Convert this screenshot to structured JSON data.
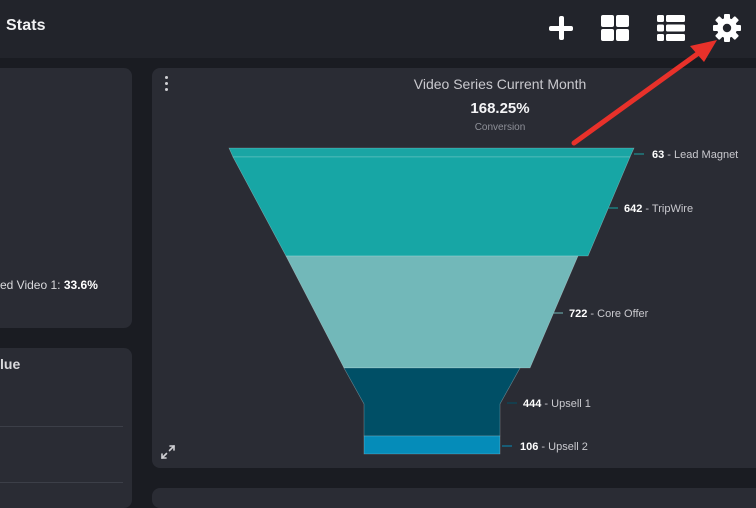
{
  "header": {
    "title": "Stats",
    "icons": [
      "plus-icon",
      "grid-view-icon",
      "list-view-icon",
      "gear-icon"
    ]
  },
  "left_panel": {
    "video_stat_label": "ed Video 1: ",
    "video_stat_value": "33.6%",
    "value_heading": "lue"
  },
  "main_card": {
    "title": "Video Series Current Month",
    "metric_value": "168.25%",
    "metric_label": "Conversion"
  },
  "chart_data": {
    "type": "funnel",
    "title": "Video Series Current Month",
    "stages": [
      {
        "name": "Lead Magnet",
        "value": 63,
        "color": "#1aa5a4"
      },
      {
        "name": "TripWire",
        "value": 642,
        "color": "#17a6a5"
      },
      {
        "name": "Core Offer",
        "value": 722,
        "color": "#72b8b9"
      },
      {
        "name": "Upsell 1",
        "value": 444,
        "color": "#004f66"
      },
      {
        "name": "Upsell 2",
        "value": 106,
        "color": "#058cb9"
      }
    ]
  },
  "annotation": {
    "arrow_color": "#e8312a"
  },
  "colors": {
    "background": "#1a1c22",
    "topbar": "#22242b",
    "card": "#2a2c34"
  }
}
